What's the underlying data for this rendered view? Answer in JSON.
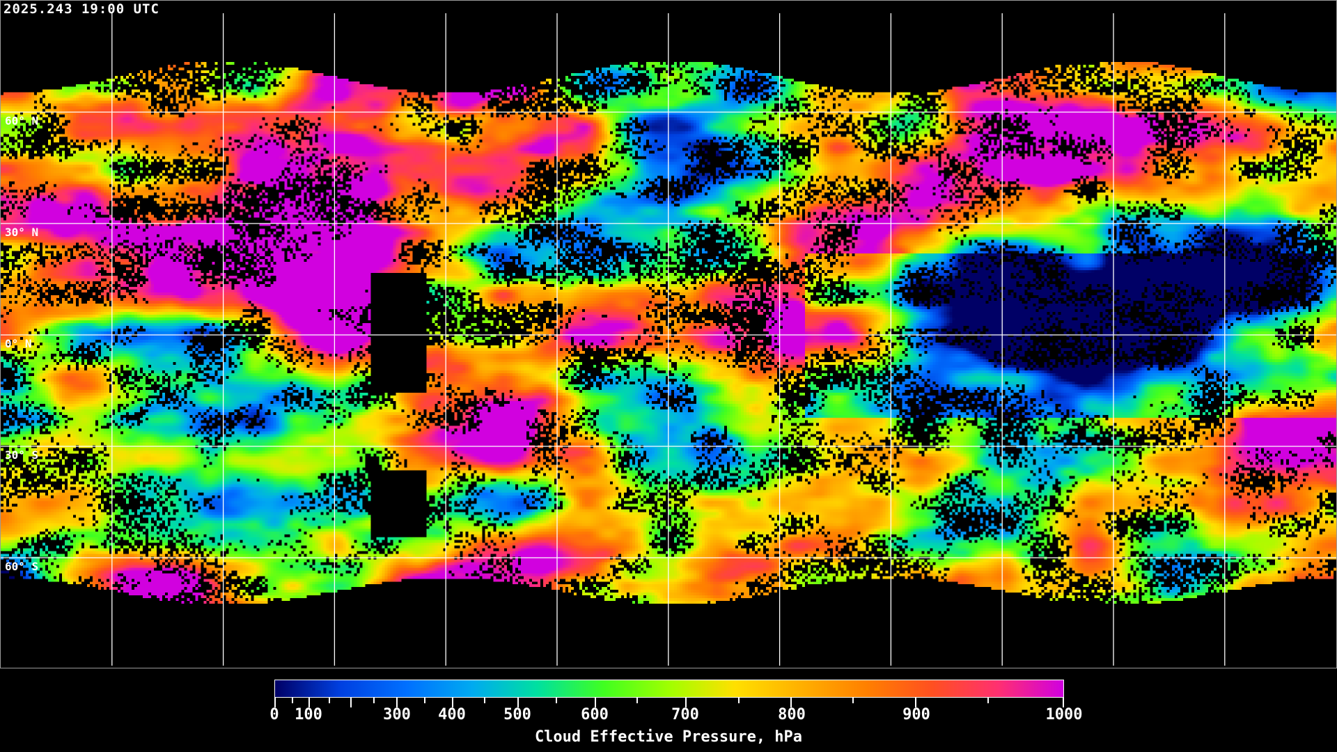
{
  "header": {
    "timestamp": "2025.243 19:00 UTC"
  },
  "map": {
    "projection": "equirectangular",
    "gridline_spacing_deg": 30,
    "lat_labels": [
      "60° N",
      "30° N",
      "0° N",
      "30° S",
      "60° S"
    ],
    "lat_values": [
      60,
      30,
      0,
      -30,
      -60
    ],
    "gridline_color": "#ffffff",
    "coastline_color": "#ffffff",
    "background": "#000000"
  },
  "colorbar": {
    "title": "Cloud Effective Pressure, hPa",
    "range": [
      0,
      1000
    ],
    "tick_labels": [
      "0",
      "100",
      "300",
      "400",
      "500",
      "600",
      "700",
      "800",
      "900",
      "1000"
    ],
    "colors": [
      "#000066",
      "#0040e0",
      "#0070ff",
      "#00aaf0",
      "#00e0a0",
      "#40ff20",
      "#a0ff00",
      "#ffe000",
      "#ffb000",
      "#ff8000",
      "#ff5020",
      "#ff3070",
      "#d000e0"
    ]
  }
}
